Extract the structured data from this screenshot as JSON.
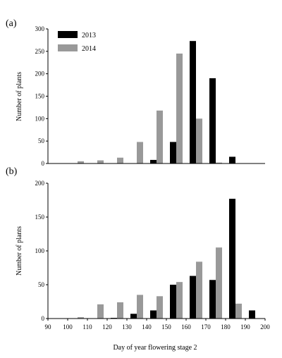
{
  "chart_data": [
    {
      "panel_label": "(a)",
      "type": "bar",
      "ylabel": "Number of plants",
      "xlabel": "",
      "ylim": [
        0,
        300
      ],
      "yticks": [
        0,
        50,
        100,
        150,
        200,
        250,
        300
      ],
      "xlim": [
        90,
        200
      ],
      "legend": {
        "placement": "top-left",
        "entries": [
          "2013",
          "2014"
        ]
      },
      "colors": {
        "2013": "#000000",
        "2014": "#999999"
      },
      "x": [
        105,
        115,
        125,
        135,
        145,
        155,
        165,
        175,
        185
      ],
      "series": [
        {
          "name": "2013",
          "values": [
            0,
            0,
            0,
            0,
            8,
            48,
            273,
            190,
            15
          ]
        },
        {
          "name": "2014",
          "values": [
            5,
            7,
            13,
            48,
            118,
            245,
            100,
            2,
            0
          ]
        }
      ]
    },
    {
      "panel_label": "(b)",
      "type": "bar",
      "ylabel": "Number of plants",
      "xlabel": "Day of year flowering  stage 2",
      "ylim": [
        0,
        200
      ],
      "yticks": [
        0,
        50,
        100,
        150,
        200
      ],
      "xlim": [
        90,
        200
      ],
      "xticks": [
        90,
        100,
        110,
        120,
        130,
        140,
        150,
        160,
        170,
        180,
        190,
        200
      ],
      "colors": {
        "2013": "#000000",
        "2014": "#999999"
      },
      "x": [
        105,
        115,
        125,
        135,
        145,
        155,
        165,
        175,
        185,
        195
      ],
      "series": [
        {
          "name": "2013",
          "values": [
            0,
            0,
            1,
            7,
            12,
            50,
            63,
            57,
            177,
            12
          ]
        },
        {
          "name": "2014",
          "values": [
            2,
            21,
            24,
            35,
            33,
            54,
            84,
            105,
            22,
            0
          ]
        }
      ]
    }
  ]
}
